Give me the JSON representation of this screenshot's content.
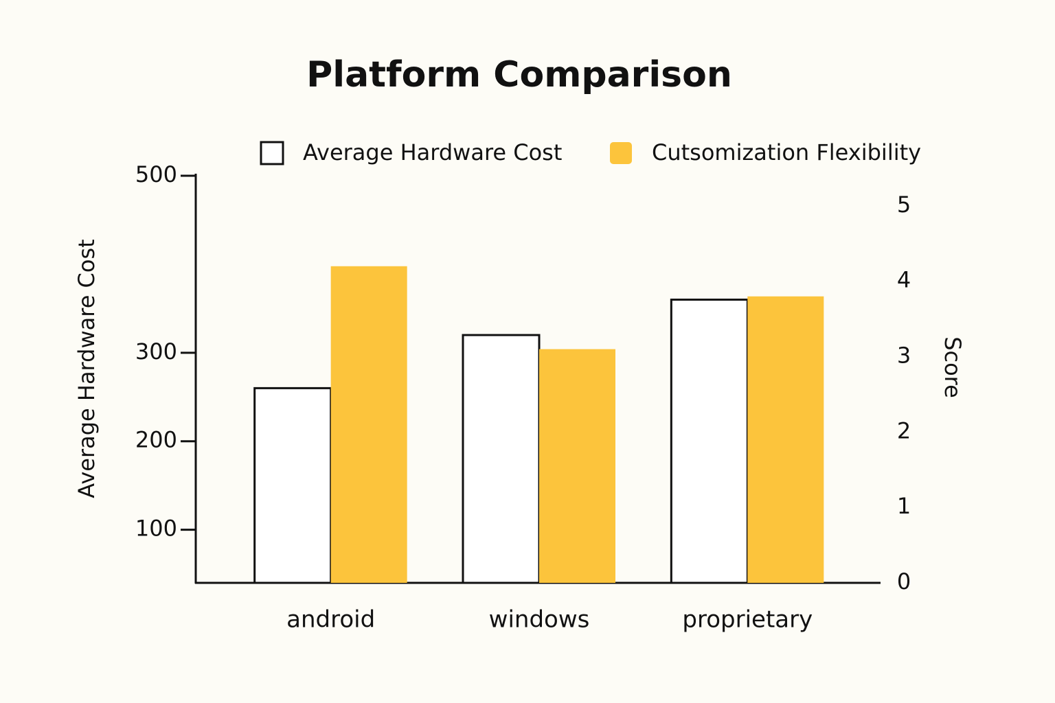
{
  "chart_data": {
    "type": "bar",
    "title": "Platform Comparison",
    "categories": [
      "android",
      "windows",
      "proprietary"
    ],
    "series": [
      {
        "name": "Average Hardware Cost",
        "color": "#ffffff",
        "values": [
          260,
          320,
          360
        ]
      },
      {
        "name": "Cutsomization Flexibility",
        "color": "#fcc43c",
        "values": [
          4.2,
          3.1,
          3.8
        ],
        "axis": "y2"
      }
    ],
    "ylabel": "Average Hardware Cost",
    "y2label": "Score",
    "ylim": [
      40,
      500
    ],
    "yticks": [
      100,
      200,
      300,
      500
    ],
    "y2lim": [
      0,
      5.4
    ],
    "y2ticks": [
      0,
      1,
      2,
      3,
      4,
      5
    ],
    "legend": "top"
  }
}
